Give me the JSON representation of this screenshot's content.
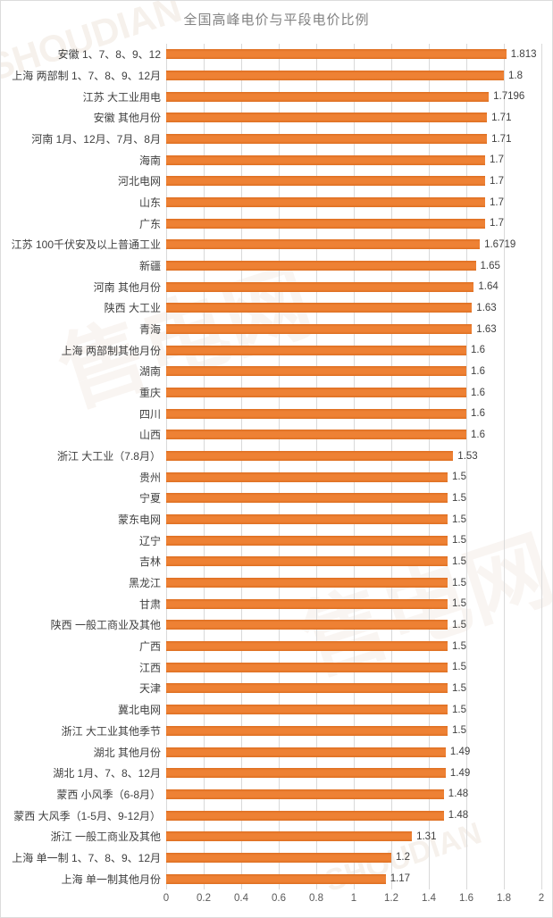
{
  "title": "全国高峰电价与平段电价比例",
  "watermark": {
    "latin": "SHOUDIAN",
    "cjk": "售电网"
  },
  "chart_data": {
    "type": "bar",
    "orientation": "horizontal",
    "title": "全国高峰电价与平段电价比例",
    "xlabel": "",
    "ylabel": "",
    "xlim": [
      0,
      2
    ],
    "xticks": [
      "0",
      "0.2",
      "0.4",
      "0.6",
      "0.8",
      "1",
      "1.2",
      "1.4",
      "1.6",
      "1.8",
      "2"
    ],
    "grid": "vertical",
    "legend": "none",
    "bar_color": "#ED7D31",
    "gridline_color": "#D9D9D9",
    "label_color": "#404040",
    "axis_text_color": "#595959",
    "categories": [
      "安徽 1、7、8、9、12",
      "上海 两部制 1、7、8、9、12月",
      "江苏 大工业用电",
      "安徽 其他月份",
      "河南 1月、12月、7月、8月",
      "海南",
      "河北电网",
      "山东",
      "广东",
      "江苏 100千伏安及以上普通工业",
      "新疆",
      "河南 其他月份",
      "陕西 大工业",
      "青海",
      "上海 两部制其他月份",
      "湖南",
      "重庆",
      "四川",
      "山西",
      "浙江 大工业（7.8月）",
      "贵州",
      "宁夏",
      "蒙东电网",
      "辽宁",
      "吉林",
      "黑龙江",
      "甘肃",
      "陕西 一般工商业及其他",
      "广西",
      "江西",
      "天津",
      "冀北电网",
      "浙江 大工业其他季节",
      "湖北 其他月份",
      "湖北 1月、7、8、12月",
      "蒙西 小风季（6-8月）",
      "蒙西 大风季（1-5月、9-12月）",
      "浙江 一般工商业及其他",
      "上海 单一制 1、7、8、9、12月",
      "上海 单一制其他月份"
    ],
    "values": [
      1.813,
      1.8,
      1.7196,
      1.71,
      1.71,
      1.7,
      1.7,
      1.7,
      1.7,
      1.6719,
      1.65,
      1.64,
      1.63,
      1.63,
      1.6,
      1.6,
      1.6,
      1.6,
      1.6,
      1.53,
      1.5,
      1.5,
      1.5,
      1.5,
      1.5,
      1.5,
      1.5,
      1.5,
      1.5,
      1.5,
      1.5,
      1.5,
      1.5,
      1.49,
      1.49,
      1.48,
      1.48,
      1.31,
      1.2,
      1.17
    ],
    "value_labels": [
      "1.813",
      "1.8",
      "1.7196",
      "1.71",
      "1.71",
      "1.7",
      "1.7",
      "1.7",
      "1.7",
      "1.6719",
      "1.65",
      "1.64",
      "1.63",
      "1.63",
      "1.6",
      "1.6",
      "1.6",
      "1.6",
      "1.6",
      "1.53",
      "1.5",
      "1.5",
      "1.5",
      "1.5",
      "1.5",
      "1.5",
      "1.5",
      "1.5",
      "1.5",
      "1.5",
      "1.5",
      "1.5",
      "1.5",
      "1.49",
      "1.49",
      "1.48",
      "1.48",
      "1.31",
      "1.2",
      "1.17"
    ]
  }
}
